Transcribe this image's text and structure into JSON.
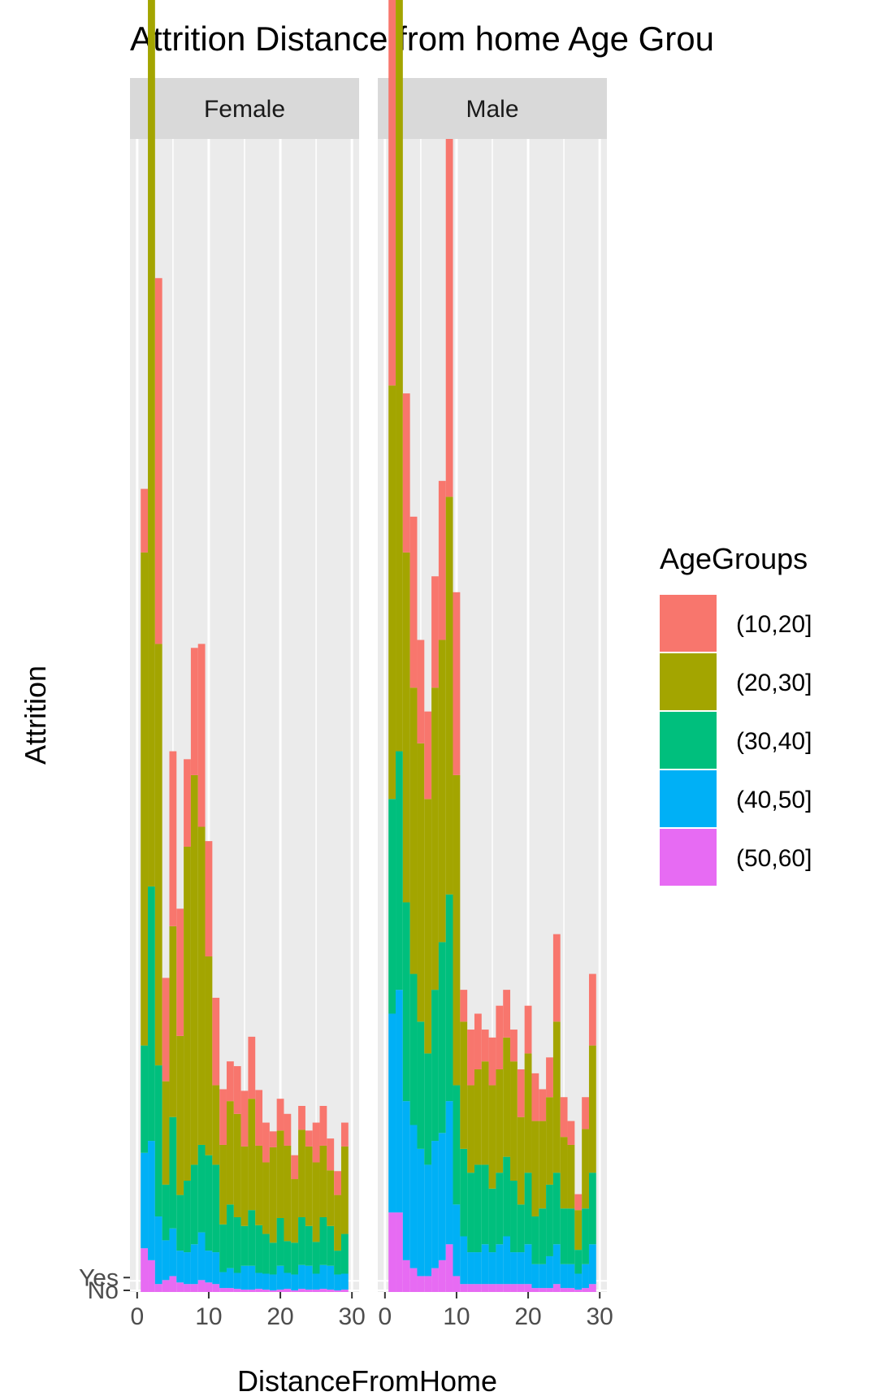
{
  "chart_data": {
    "type": "bar",
    "title": "Attrition Distance from home Age Grou",
    "xlabel": "DistanceFromHome",
    "ylabel": "Attrition",
    "y_tick_labels": [
      "No",
      "Yes"
    ],
    "x_ticks": [
      0,
      10,
      20,
      30
    ],
    "xlim": [
      0,
      30
    ],
    "ylim": [
      0,
      1
    ],
    "grid": true,
    "facets": [
      "Female",
      "Male"
    ],
    "legend": {
      "title": "AgeGroups",
      "position": "right",
      "entries": [
        {
          "label": "(10,20]",
          "color": "#F8766D"
        },
        {
          "label": "(20,30]",
          "color": "#A3A500"
        },
        {
          "label": "(30,40]",
          "color": "#00BF7D"
        },
        {
          "label": "(40,50]",
          "color": "#00B0F6"
        },
        {
          "label": "(50,60]",
          "color": "#E76BF3"
        }
      ]
    },
    "panels": [
      {
        "name": "Female",
        "bars": [
          {
            "x": 1,
            "stack": [
              0.055,
              0.12,
              0.135,
              0.44,
              0.05,
              0.18,
              0.03
            ]
          },
          {
            "x": 2,
            "stack": [
              0.04,
              0.15,
              0.32,
              0.49,
              0.68,
              0.66,
              0.69
            ]
          },
          {
            "x": 3,
            "stack": [
              0.01,
              0.085,
              0.19,
              0.25,
              0.22,
              0.28,
              0.24
            ]
          },
          {
            "x": 4,
            "stack": [
              0.015,
              0.05,
              0.07,
              0.04,
              0.12,
              0.09,
              0.01
            ]
          },
          {
            "x": 5,
            "stack": [
              0.02,
              0.06,
              0.14,
              0.13,
              0.16,
              0.11,
              0.06
            ]
          },
          {
            "x": 6,
            "stack": [
              0.012,
              0.04,
              0.07,
              0.09,
              0.12,
              0.11,
              0.04
            ]
          },
          {
            "x": 7,
            "stack": [
              0.01,
              0.04,
              0.09,
              0.15,
              0.1,
              0.27,
              0.01
            ]
          },
          {
            "x": 8,
            "stack": [
              0.01,
              0.05,
              0.1,
              0.16,
              0.14,
              0.33,
              0.02
            ]
          },
          {
            "x": 9,
            "stack": [
              0.015,
              0.06,
              0.11,
              0.17,
              0.2,
              0.23,
              0.03
            ]
          },
          {
            "x": 10,
            "stack": [
              0.012,
              0.04,
              0.12,
              0.09,
              0.12,
              0.16,
              0.025
            ]
          },
          {
            "x": 11,
            "stack": [
              0.01,
              0.04,
              0.11,
              0.06,
              0.09,
              0.04,
              0.02
            ]
          },
          {
            "x": 12,
            "stack": [
              0.005,
              0.02,
              0.06,
              0.04,
              0.07,
              0.06,
              0
            ]
          },
          {
            "x": 13,
            "stack": [
              0.005,
              0.025,
              0.08,
              0.07,
              0.05,
              0.06,
              0
            ]
          },
          {
            "x": 14,
            "stack": [
              0.004,
              0.02,
              0.07,
              0.06,
              0.05,
              0.07,
              0.01
            ]
          },
          {
            "x": 15,
            "stack": [
              0.003,
              0.03,
              0.05,
              0.04,
              0.07,
              0.06,
              0
            ]
          },
          {
            "x": 16,
            "stack": [
              0.003,
              0.03,
              0.07,
              0.09,
              0.07,
              0.05,
              0.008
            ]
          },
          {
            "x": 17,
            "stack": [
              0.004,
              0.02,
              0.06,
              0.04,
              0.07,
              0.06,
              0
            ]
          },
          {
            "x": 18,
            "stack": [
              0.003,
              0.02,
              0.05,
              0.02,
              0.05,
              0.07,
              0
            ]
          },
          {
            "x": 19,
            "stack": [
              0.002,
              0.02,
              0.04,
              0.05,
              0.02,
              0.07,
              0
            ]
          },
          {
            "x": 20,
            "stack": [
              0.003,
              0.03,
              0.06,
              0.03,
              0.04,
              0.08,
              0
            ]
          },
          {
            "x": 21,
            "stack": [
              0.004,
              0.02,
              0.04,
              0.05,
              0.04,
              0.07,
              0
            ]
          },
          {
            "x": 22,
            "stack": [
              0.002,
              0.02,
              0.04,
              0.03,
              0.03,
              0.05,
              0
            ]
          },
          {
            "x": 23,
            "stack": [
              0.004,
              0.03,
              0.06,
              0.05,
              0.03,
              0.06,
              0
            ]
          },
          {
            "x": 24,
            "stack": [
              0.003,
              0.03,
              0.05,
              0.05,
              0.02,
              0.05,
              0
            ]
          },
          {
            "x": 25,
            "stack": [
              0.003,
              0.02,
              0.04,
              0.06,
              0.05,
              0.04,
              0
            ]
          },
          {
            "x": 26,
            "stack": [
              0.004,
              0.03,
              0.06,
              0.04,
              0.04,
              0.05,
              0.01
            ]
          },
          {
            "x": 27,
            "stack": [
              0.003,
              0.03,
              0.05,
              0.03,
              0.04,
              0.04,
              0
            ]
          },
          {
            "x": 28,
            "stack": [
              0.002,
              0.02,
              0.03,
              0.03,
              0.03,
              0.04,
              0
            ]
          },
          {
            "x": 29,
            "stack": [
              0.003,
              0.02,
              0.05,
              0.06,
              0.03,
              0.05,
              0
            ]
          }
        ]
      },
      {
        "name": "Male",
        "bars": [
          {
            "x": 1,
            "stack": [
              0.1,
              0.25,
              0.27,
              0.27,
              0.6,
              0.25,
              0.03
            ]
          },
          {
            "x": 2,
            "stack": [
              0.1,
              0.28,
              0.3,
              0.43,
              0.5,
              0.6,
              0.02
            ]
          },
          {
            "x": 3,
            "stack": [
              0.04,
              0.2,
              0.25,
              0.3,
              0.18,
              0.14,
              0.02
            ]
          },
          {
            "x": 4,
            "stack": [
              0.03,
              0.18,
              0.19,
              0.26,
              0.2,
              0.1,
              0.015
            ]
          },
          {
            "x": 5,
            "stack": [
              0.02,
              0.16,
              0.16,
              0.26,
              0.11,
              0.09,
              0.02
            ]
          },
          {
            "x": 6,
            "stack": [
              0.02,
              0.14,
              0.14,
              0.23,
              0.1,
              0.09,
              0.01
            ]
          },
          {
            "x": 7,
            "stack": [
              0.03,
              0.16,
              0.19,
              0.24,
              0.13,
              0.14,
              0.01
            ]
          },
          {
            "x": 8,
            "stack": [
              0.04,
              0.16,
              0.24,
              0.21,
              0.18,
              0.17,
              0.02
            ]
          },
          {
            "x": 9,
            "stack": [
              0.06,
              0.18,
              0.26,
              0.23,
              0.41,
              0.27,
              0.04
            ]
          },
          {
            "x": 10,
            "stack": [
              0.02,
              0.09,
              0.15,
              0.23,
              0.2,
              0.16,
              0.03
            ]
          },
          {
            "x": 11,
            "stack": [
              0.01,
              0.06,
              0.11,
              0.12,
              0.04,
              0.04,
              0
            ]
          },
          {
            "x": 12,
            "stack": [
              0.01,
              0.04,
              0.1,
              0.08,
              0.07,
              0.03,
              0
            ]
          },
          {
            "x": 13,
            "stack": [
              0.01,
              0.04,
              0.11,
              0.08,
              0.07,
              0.04,
              0
            ]
          },
          {
            "x": 14,
            "stack": [
              0.01,
              0.05,
              0.1,
              0.09,
              0.04,
              0.04,
              0
            ]
          },
          {
            "x": 15,
            "stack": [
              0.01,
              0.04,
              0.08,
              0.07,
              0.06,
              0.06,
              0
            ]
          },
          {
            "x": 16,
            "stack": [
              0.01,
              0.05,
              0.09,
              0.09,
              0.08,
              0.04,
              0
            ]
          },
          {
            "x": 17,
            "stack": [
              0.01,
              0.06,
              0.1,
              0.09,
              0.06,
              0.06,
              0
            ]
          },
          {
            "x": 18,
            "stack": [
              0.01,
              0.04,
              0.09,
              0.1,
              0.04,
              0.05,
              0
            ]
          },
          {
            "x": 19,
            "stack": [
              0.01,
              0.04,
              0.06,
              0.07,
              0.06,
              0.04,
              0
            ]
          },
          {
            "x": 20,
            "stack": [
              0.01,
              0.05,
              0.09,
              0.09,
              0.06,
              0.06,
              0
            ]
          },
          {
            "x": 21,
            "stack": [
              0.005,
              0.03,
              0.06,
              0.06,
              0.04,
              0.06,
              0.02
            ]
          },
          {
            "x": 22,
            "stack": [
              0.005,
              0.03,
              0.07,
              0.06,
              0.04,
              0.05,
              0
            ]
          },
          {
            "x": 23,
            "stack": [
              0.005,
              0.04,
              0.09,
              0.07,
              0.05,
              0.04,
              0
            ]
          },
          {
            "x": 24,
            "stack": [
              0.01,
              0.05,
              0.09,
              0.09,
              0.11,
              0.1,
              0
            ]
          },
          {
            "x": 25,
            "stack": [
              0.005,
              0.03,
              0.07,
              0.06,
              0.05,
              0.03,
              0
            ]
          },
          {
            "x": 26,
            "stack": [
              0.005,
              0.03,
              0.07,
              0.05,
              0.03,
              0.03,
              0
            ]
          },
          {
            "x": 27,
            "stack": [
              0.003,
              0.02,
              0.03,
              0.03,
              0.02,
              0.02,
              0
            ]
          },
          {
            "x": 28,
            "stack": [
              0.005,
              0.03,
              0.07,
              0.06,
              0.04,
              0.04,
              0
            ]
          },
          {
            "x": 29,
            "stack": [
              0.01,
              0.05,
              0.09,
              0.08,
              0.09,
              0.08,
              0
            ]
          }
        ]
      }
    ]
  }
}
